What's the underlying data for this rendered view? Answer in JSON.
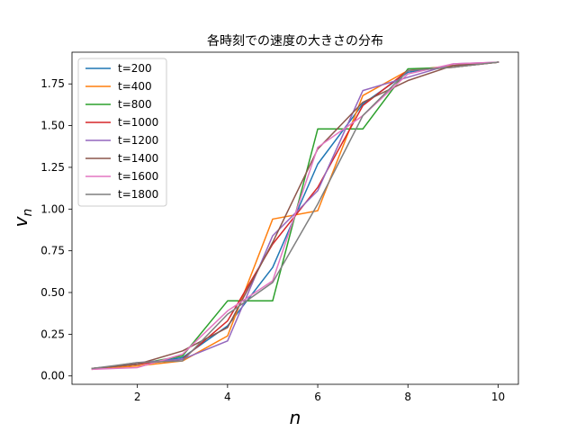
{
  "chart_data": {
    "type": "line",
    "title": "各時刻での速度の大きさの分布",
    "xlabel": "n",
    "ylabel": "v_n",
    "xlim": [
      0.55,
      10.45
    ],
    "ylim": [
      -0.05,
      1.94
    ],
    "xticks": [
      2,
      4,
      6,
      8,
      10
    ],
    "yticks": [
      0.0,
      0.25,
      0.5,
      0.75,
      1.0,
      1.25,
      1.5,
      1.75
    ],
    "grid": false,
    "legend_position": "top-left",
    "x": [
      1,
      2,
      3,
      4,
      5,
      6,
      7,
      8,
      9,
      10
    ],
    "series": [
      {
        "name": "t=200",
        "color": "#1f77b4",
        "values": [
          0.045,
          0.07,
          0.11,
          0.3,
          0.65,
          1.27,
          1.63,
          1.82,
          1.86,
          1.88
        ]
      },
      {
        "name": "t=400",
        "color": "#ff7f0e",
        "values": [
          0.04,
          0.06,
          0.09,
          0.24,
          0.94,
          0.99,
          1.68,
          1.83,
          1.86,
          1.88
        ]
      },
      {
        "name": "t=800",
        "color": "#2ca02c",
        "values": [
          0.045,
          0.07,
          0.12,
          0.45,
          0.45,
          1.48,
          1.48,
          1.84,
          1.85,
          1.88
        ]
      },
      {
        "name": "t=1000",
        "color": "#d62728",
        "values": [
          0.045,
          0.07,
          0.1,
          0.33,
          0.79,
          1.13,
          1.62,
          1.83,
          1.85,
          1.88
        ]
      },
      {
        "name": "t=1200",
        "color": "#9467bd",
        "values": [
          0.04,
          0.08,
          0.1,
          0.21,
          0.84,
          1.11,
          1.71,
          1.79,
          1.87,
          1.88
        ]
      },
      {
        "name": "t=1400",
        "color": "#8c564b",
        "values": [
          0.045,
          0.07,
          0.15,
          0.29,
          0.8,
          1.36,
          1.64,
          1.77,
          1.86,
          1.88
        ]
      },
      {
        "name": "t=1600",
        "color": "#e377c2",
        "values": [
          0.04,
          0.05,
          0.13,
          0.39,
          0.57,
          1.37,
          1.56,
          1.81,
          1.87,
          1.88
        ]
      },
      {
        "name": "t=1800",
        "color": "#7f7f7f",
        "values": [
          0.045,
          0.08,
          0.09,
          0.37,
          0.56,
          1.03,
          1.56,
          1.83,
          1.85,
          1.88
        ]
      }
    ]
  }
}
